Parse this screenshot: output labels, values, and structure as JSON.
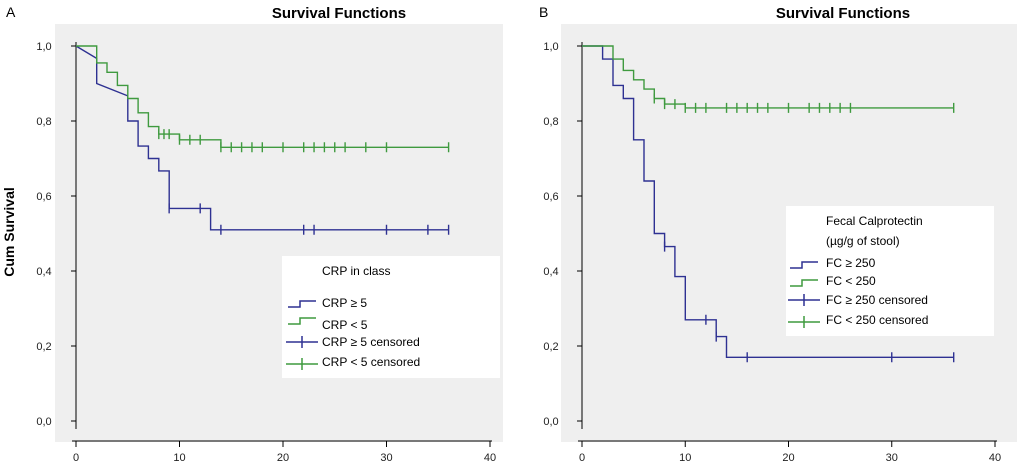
{
  "figure": {
    "colors": {
      "plot_bg": "#efefef",
      "panel_bg": "#ffffff",
      "axis": "#000000",
      "grid": "#dcdcdc",
      "legend_bg": "#ffffff",
      "line_high": "#2e3192",
      "line_low": "#3f9a3f"
    }
  },
  "chart_data": [
    {
      "type": "line",
      "panel_label": "A",
      "title": "Survival Functions",
      "xlabel": "",
      "ylabel": "Cum Survival",
      "xlim": [
        0,
        40
      ],
      "ylim": [
        0,
        1
      ],
      "xticks": [
        "0",
        "10",
        "20",
        "30",
        "40"
      ],
      "yticks": [
        "0,0",
        "0,2",
        "0,4",
        "0,6",
        "0,8",
        "1,0"
      ],
      "legend": {
        "title": "CRP in class",
        "entries": [
          "CRP ≥ 5",
          "CRP < 5",
          "CRP ≥ 5 censored",
          "CRP < 5 censored"
        ]
      },
      "series": [
        {
          "name": "CRP ≥ 5",
          "color_key": "line_high",
          "steps": [
            [
              0,
              1.0
            ],
            [
              2,
              0.967
            ],
            [
              2,
              0.9
            ],
            [
              5,
              0.867
            ],
            [
              5,
              0.8
            ],
            [
              6,
              0.8
            ],
            [
              6,
              0.733
            ],
            [
              7,
              0.733
            ],
            [
              7,
              0.7
            ],
            [
              8,
              0.7
            ],
            [
              8,
              0.667
            ],
            [
              9,
              0.667
            ],
            [
              9,
              0.567
            ],
            [
              13,
              0.567
            ],
            [
              13,
              0.51
            ],
            [
              36,
              0.51
            ]
          ],
          "censored": [
            9,
            12,
            14,
            22,
            23,
            30,
            34,
            36
          ],
          "censored_y": [
            0.567,
            0.567,
            0.51,
            0.51,
            0.51,
            0.51,
            0.51,
            0.51
          ]
        },
        {
          "name": "CRP < 5",
          "color_key": "line_low",
          "steps": [
            [
              0,
              1.0
            ],
            [
              2,
              1.0
            ],
            [
              2,
              0.955
            ],
            [
              3,
              0.955
            ],
            [
              3,
              0.93
            ],
            [
              4,
              0.93
            ],
            [
              4,
              0.895
            ],
            [
              5,
              0.895
            ],
            [
              5,
              0.86
            ],
            [
              6,
              0.86
            ],
            [
              6,
              0.822
            ],
            [
              7,
              0.822
            ],
            [
              7,
              0.785
            ],
            [
              8,
              0.785
            ],
            [
              8,
              0.765
            ],
            [
              10,
              0.765
            ],
            [
              10,
              0.75
            ],
            [
              14,
              0.75
            ],
            [
              14,
              0.73
            ],
            [
              36,
              0.73
            ]
          ],
          "censored": [
            8,
            8.5,
            9,
            10,
            11,
            12,
            14,
            15,
            16,
            17,
            18,
            20,
            22,
            23,
            24,
            25,
            26,
            28,
            30,
            36
          ],
          "censored_y": [
            0.765,
            0.765,
            0.765,
            0.75,
            0.75,
            0.75,
            0.73,
            0.73,
            0.73,
            0.73,
            0.73,
            0.73,
            0.73,
            0.73,
            0.73,
            0.73,
            0.73,
            0.73,
            0.73,
            0.73
          ]
        }
      ]
    },
    {
      "type": "line",
      "panel_label": "B",
      "title": "Survival Functions",
      "xlabel": "",
      "ylabel": "",
      "xlim": [
        0,
        40
      ],
      "ylim": [
        0,
        1
      ],
      "xticks": [
        "0",
        "10",
        "20",
        "30",
        "40"
      ],
      "yticks": [
        "0,0",
        "0,2",
        "0,4",
        "0,6",
        "0,8",
        "1,0"
      ],
      "legend": {
        "title": "Fecal Calprotectin",
        "title2": "(µg/g of stool)",
        "entries": [
          "FC ≥ 250",
          "FC < 250",
          "FC ≥ 250 censored",
          "FC < 250 censored"
        ]
      },
      "series": [
        {
          "name": "FC ≥ 250",
          "color_key": "line_high",
          "steps": [
            [
              0,
              1.0
            ],
            [
              2,
              1.0
            ],
            [
              2,
              0.965
            ],
            [
              3,
              0.965
            ],
            [
              3,
              0.895
            ],
            [
              4,
              0.895
            ],
            [
              4,
              0.86
            ],
            [
              5,
              0.86
            ],
            [
              5,
              0.75
            ],
            [
              6,
              0.75
            ],
            [
              6,
              0.64
            ],
            [
              7,
              0.64
            ],
            [
              7,
              0.5
            ],
            [
              8,
              0.5
            ],
            [
              8,
              0.465
            ],
            [
              9,
              0.465
            ],
            [
              9,
              0.385
            ],
            [
              10,
              0.385
            ],
            [
              10,
              0.27
            ],
            [
              13,
              0.27
            ],
            [
              13,
              0.225
            ],
            [
              14,
              0.225
            ],
            [
              14,
              0.17
            ],
            [
              36,
              0.17
            ]
          ],
          "censored": [
            8,
            12,
            13,
            16,
            30,
            36
          ],
          "censored_y": [
            0.465,
            0.27,
            0.225,
            0.17,
            0.17,
            0.17
          ]
        },
        {
          "name": "FC < 250",
          "color_key": "line_low",
          "steps": [
            [
              0,
              1.0
            ],
            [
              3,
              1.0
            ],
            [
              3,
              0.965
            ],
            [
              4,
              0.965
            ],
            [
              4,
              0.935
            ],
            [
              5,
              0.935
            ],
            [
              5,
              0.91
            ],
            [
              6,
              0.91
            ],
            [
              6,
              0.885
            ],
            [
              7,
              0.885
            ],
            [
              7,
              0.86
            ],
            [
              8,
              0.86
            ],
            [
              8,
              0.845
            ],
            [
              10,
              0.845
            ],
            [
              10,
              0.835
            ],
            [
              36,
              0.835
            ]
          ],
          "censored": [
            7,
            8,
            9,
            10,
            11,
            12,
            14,
            15,
            16,
            17,
            18,
            20,
            22,
            23,
            24,
            25,
            26,
            36
          ],
          "censored_y": [
            0.86,
            0.845,
            0.845,
            0.835,
            0.835,
            0.835,
            0.835,
            0.835,
            0.835,
            0.835,
            0.835,
            0.835,
            0.835,
            0.835,
            0.835,
            0.835,
            0.835,
            0.835
          ]
        }
      ]
    }
  ]
}
